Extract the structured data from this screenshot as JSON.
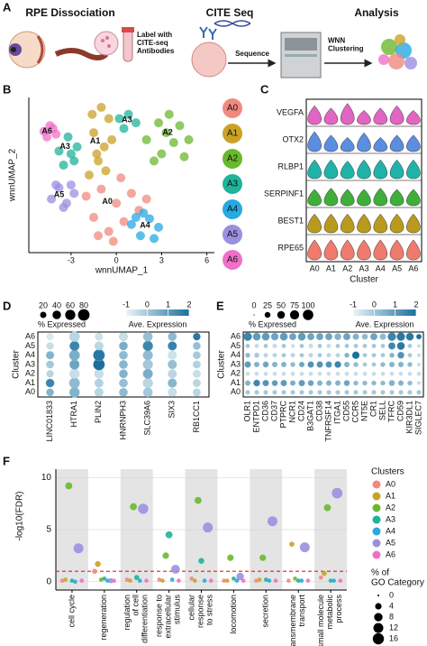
{
  "panel_labels": [
    "A",
    "B",
    "C",
    "D",
    "E",
    "F"
  ],
  "workflow": {
    "steps": [
      "RPE Dissociation",
      "CITE Seq",
      "Analysis"
    ],
    "notes": [
      "Label with\nCITE-seq\nAntibodies",
      "Sequence",
      "WNN\nClustering"
    ]
  },
  "chart_data": [
    {
      "type": "scatter",
      "xlabel": "wnnUMAP_1",
      "ylabel": "wnnUMAP_2",
      "xlim": [
        -5.8,
        6.5
      ],
      "ylim": [
        -5,
        6
      ],
      "xticks": [
        -3,
        0,
        3,
        6
      ],
      "series": [
        {
          "name": "A0",
          "color": "#f08a7e",
          "x": [
            -2,
            -1.5,
            -1,
            -0.5,
            0,
            0.5,
            1,
            1.5,
            -1.2,
            0.3,
            2,
            -0.2
          ],
          "y": [
            -1,
            -2.5,
            -0.5,
            -3.5,
            -1.5,
            -2.8,
            -0.8,
            -2,
            -3.8,
            0.3,
            -1.2,
            -4.2
          ]
        },
        {
          "name": "A1",
          "color": "#c9a227",
          "x": [
            -1.8,
            -1.2,
            -0.8,
            -1.5,
            -0.5,
            -1,
            -0.3,
            -1.6,
            -0.7,
            -1.3
          ],
          "y": [
            0.5,
            1.5,
            2.5,
            3.5,
            4.5,
            5.3,
            3,
            4.8,
            0.8,
            2
          ]
        },
        {
          "name": "A2",
          "color": "#6ab82e",
          "x": [
            2,
            2.8,
            3.5,
            4.2,
            4.8,
            3,
            3.8,
            4.5,
            2.5,
            3.3
          ],
          "y": [
            3,
            4.2,
            4.8,
            4,
            3,
            2,
            2.8,
            1.8,
            1.5,
            3.5
          ]
        },
        {
          "name": "A3",
          "color": "#1fb39a",
          "x": [
            -3.8,
            -3.2,
            -2.6,
            -3.5,
            -2.8,
            0.2,
            0.8,
            1.3,
            0.5,
            -3
          ],
          "y": [
            2.2,
            3.2,
            2.5,
            1.2,
            1.5,
            4.5,
            4.8,
            4.2,
            3.8,
            2
          ]
        },
        {
          "name": "A4",
          "color": "#27a9e1",
          "x": [
            1,
            1.6,
            2.2,
            2.8,
            1.8,
            1.3,
            2.5
          ],
          "y": [
            -3,
            -3.8,
            -2.6,
            -3.2,
            -2.2,
            -2.5,
            -4
          ]
        },
        {
          "name": "A5",
          "color": "#9b8fe0",
          "x": [
            -4.3,
            -3.8,
            -3.3,
            -2.8,
            -4,
            -3.5,
            -3
          ],
          "y": [
            -1.2,
            -0.4,
            -1.5,
            -0.8,
            -0.2,
            -1.8,
            -0.2
          ]
        },
        {
          "name": "A6",
          "color": "#f06fc8",
          "x": [
            -4.8,
            -4.4,
            -4,
            -4.6,
            -4.2
          ],
          "y": [
            3.6,
            4,
            3.4,
            3.2,
            3.8
          ]
        }
      ]
    },
    {
      "type": "violin",
      "categories": [
        "A0",
        "A1",
        "A2",
        "A3",
        "A4",
        "A5",
        "A6"
      ],
      "xlabel": "Cluster",
      "series": [
        {
          "name": "VEGFA",
          "color": "#e066c2",
          "values": [
            0.8,
            0.7,
            0.9,
            0.6,
            0.7,
            0.8,
            0.6
          ]
        },
        {
          "name": "OTX2",
          "color": "#5b8de0",
          "values": [
            0.85,
            0.7,
            0.6,
            0.8,
            0.6,
            0.7,
            0.7
          ]
        },
        {
          "name": "RLBP1",
          "color": "#1fb3a8",
          "values": [
            0.8,
            0.8,
            0.75,
            0.8,
            0.8,
            0.8,
            0.8
          ]
        },
        {
          "name": "SERPINF1",
          "color": "#3fae3a",
          "values": [
            0.7,
            0.75,
            0.7,
            0.7,
            0.75,
            0.7,
            0.7
          ]
        },
        {
          "name": "BEST1",
          "color": "#b89a1e",
          "values": [
            0.8,
            0.8,
            0.8,
            0.8,
            0.8,
            0.8,
            0.8
          ]
        },
        {
          "name": "RPE65",
          "color": "#f07a6e",
          "values": [
            0.85,
            0.85,
            0.85,
            0.85,
            0.85,
            0.85,
            0.85
          ]
        }
      ]
    },
    {
      "type": "dotplot",
      "categories": [
        "LINC01833",
        "HTRA1",
        "PLIN2",
        "HNRNPH3",
        "SLC39A6",
        "SIX3",
        "RB1CC1"
      ],
      "ylabel": "Cluster",
      "size_label": "% Expressed",
      "size_ticks": [
        20,
        40,
        60,
        80
      ],
      "color_label": "Ave. Expression",
      "color_lim": [
        -1,
        2
      ],
      "color_ticks": [
        -1,
        0,
        1,
        2
      ],
      "colors": [
        "#eaf4f8",
        "#1b6f9e"
      ],
      "series": [
        {
          "name": "A0",
          "values": [
            0.5,
            0.5,
            -0.3,
            0.3,
            0,
            -0.5,
            -0.3
          ],
          "sizes": [
            30,
            60,
            40,
            40,
            50,
            40,
            30
          ]
        },
        {
          "name": "A1",
          "values": [
            1.5,
            0.3,
            -0.2,
            0.2,
            -0.3,
            0.4,
            -0.3
          ],
          "sizes": [
            40,
            65,
            40,
            40,
            55,
            45,
            30
          ]
        },
        {
          "name": "A2",
          "values": [
            -0.3,
            -0.5,
            -0.5,
            0.5,
            0.6,
            -0.3,
            -0.5
          ],
          "sizes": [
            25,
            55,
            45,
            40,
            55,
            40,
            30
          ]
        },
        {
          "name": "A3",
          "values": [
            0,
            0.8,
            2,
            0.4,
            0,
            0.2,
            -0.2
          ],
          "sizes": [
            30,
            55,
            80,
            40,
            55,
            45,
            30
          ]
        },
        {
          "name": "A4",
          "values": [
            0.5,
            0.6,
            1.8,
            0.3,
            0.3,
            -0.6,
            0
          ],
          "sizes": [
            35,
            65,
            80,
            40,
            55,
            40,
            30
          ]
        },
        {
          "name": "A5",
          "values": [
            -0.5,
            1.5,
            -0.3,
            0.6,
            1.5,
            1.6,
            0.2
          ],
          "sizes": [
            25,
            55,
            40,
            40,
            60,
            45,
            30
          ]
        },
        {
          "name": "A6",
          "values": [
            -0.8,
            -0.3,
            -0.6,
            -0.5,
            0.2,
            0.3,
            1.8
          ],
          "sizes": [
            20,
            60,
            30,
            40,
            50,
            40,
            30
          ]
        }
      ]
    },
    {
      "type": "dotplot",
      "categories": [
        "OLR1",
        "ENTPD1",
        "CD36",
        "CD37",
        "PTPRC",
        "NCR1",
        "CD24",
        "B3GAT1",
        "CD38",
        "TNFRSF14",
        "ITGA1",
        "CD55",
        "CCR5",
        "NT5E",
        "CR1",
        "SELL",
        "TFRC",
        "CD59",
        "KIR3DL1",
        "SIGLEC7"
      ],
      "ylabel": "Cluster",
      "size_label": "% Expressed",
      "size_ticks": [
        0,
        25,
        50,
        75,
        100
      ],
      "color_label": "Ave. Expression",
      "color_lim": [
        -1,
        2
      ],
      "color_ticks": [
        -1,
        0,
        1,
        2
      ],
      "colors": [
        "#eaf4f8",
        "#1b6f9e"
      ],
      "series": [
        {
          "name": "A0",
          "values": [
            0,
            0,
            0,
            0,
            0,
            0,
            0,
            0,
            0,
            0,
            0,
            0,
            0,
            0,
            0,
            0,
            0,
            0,
            0,
            0
          ],
          "sizes": [
            12,
            12,
            12,
            12,
            12,
            12,
            12,
            12,
            12,
            12,
            12,
            12,
            12,
            12,
            12,
            12,
            12,
            12,
            12,
            12
          ]
        },
        {
          "name": "A1",
          "values": [
            0.5,
            1.5,
            1.2,
            1,
            1,
            0.6,
            1,
            0.8,
            0.5,
            0.5,
            0.5,
            0.8,
            0.3,
            0.3,
            0.3,
            0.3,
            0.5,
            0.5,
            0.3,
            -0.5
          ],
          "sizes": [
            20,
            35,
            30,
            25,
            30,
            20,
            30,
            25,
            20,
            20,
            20,
            25,
            15,
            15,
            15,
            15,
            25,
            20,
            15,
            5
          ]
        },
        {
          "name": "A2",
          "values": [
            -0.5,
            -0.5,
            -0.5,
            -0.5,
            -0.5,
            -0.5,
            -0.5,
            -0.5,
            -0.5,
            -0.5,
            -0.5,
            -0.5,
            -0.5,
            -0.5,
            -0.5,
            -0.5,
            -0.5,
            -0.5,
            -0.5,
            -0.5
          ],
          "sizes": [
            8,
            8,
            8,
            8,
            8,
            8,
            8,
            8,
            8,
            8,
            8,
            8,
            8,
            8,
            8,
            8,
            8,
            8,
            8,
            8
          ]
        },
        {
          "name": "A3",
          "values": [
            1,
            0.5,
            0.8,
            0.5,
            0.5,
            0.3,
            0.8,
            1.2,
            1.2,
            1.2,
            1.5,
            0.5,
            0.3,
            0,
            0,
            0.3,
            0.5,
            0.5,
            0.3,
            -0.5
          ],
          "sizes": [
            30,
            20,
            25,
            20,
            20,
            15,
            20,
            30,
            30,
            30,
            35,
            20,
            15,
            10,
            10,
            15,
            20,
            20,
            15,
            5
          ]
        },
        {
          "name": "A4",
          "values": [
            0.3,
            0,
            -0.3,
            -0.3,
            0,
            -0.3,
            0,
            -0.3,
            0,
            -0.3,
            -0.3,
            0.5,
            2,
            0,
            0,
            0,
            0.5,
            1.2,
            0,
            -0.5
          ],
          "sizes": [
            15,
            15,
            10,
            10,
            10,
            10,
            10,
            10,
            10,
            10,
            10,
            15,
            45,
            10,
            10,
            10,
            15,
            35,
            10,
            5
          ]
        },
        {
          "name": "A5",
          "values": [
            0,
            -0.5,
            0,
            -0.5,
            0,
            -0.5,
            0,
            -0.5,
            0,
            -0.5,
            0,
            0,
            0,
            0,
            0,
            0,
            1.5,
            1.8,
            0,
            -0.5
          ],
          "sizes": [
            10,
            10,
            10,
            10,
            10,
            5,
            10,
            10,
            10,
            10,
            10,
            10,
            10,
            10,
            10,
            10,
            40,
            50,
            10,
            5
          ]
        },
        {
          "name": "A6",
          "values": [
            1.5,
            1,
            1,
            0.8,
            1,
            0.8,
            1,
            0.8,
            0.8,
            0.8,
            0.5,
            0.8,
            0.5,
            0.3,
            0.8,
            0.3,
            1.5,
            1.8,
            1.8,
            2
          ],
          "sizes": [
            60,
            50,
            50,
            45,
            50,
            40,
            50,
            40,
            40,
            40,
            35,
            40,
            30,
            25,
            40,
            30,
            60,
            60,
            50,
            20
          ]
        }
      ]
    },
    {
      "type": "category-scatter",
      "ylabel": "-log10(FDR)",
      "categories": [
        "cell cycle",
        "regeneration",
        "regulation\nof cell\ndifferentiation",
        "response to\nextracellular\nstimulus",
        "cellular\nresponse\nto stress",
        "locomotion",
        "secretion",
        "transmembrane\ntransport",
        "small molecule\nmetabolic\nprocess"
      ],
      "shaded": [
        true,
        false,
        true,
        false,
        true,
        false,
        true,
        false,
        true
      ],
      "ylim": [
        -0.8,
        10.8
      ],
      "yticks": [
        0,
        5,
        10
      ],
      "grid": true,
      "threshold": 1,
      "legend_title": "Clusters",
      "size_title": "% of\nGO Category",
      "size_ticks": [
        0,
        4,
        8,
        12,
        16
      ],
      "series": [
        {
          "name": "A0",
          "color": "#f08a7e",
          "values": [
            0.1,
            1.0,
            0.2,
            0.2,
            0.3,
            0.1,
            0.1,
            0.1,
            0.4
          ],
          "sizes": [
            1,
            2,
            1,
            1,
            1,
            1,
            1,
            1,
            1
          ]
        },
        {
          "name": "A1",
          "color": "#c9a227",
          "values": [
            0.2,
            1.7,
            0.1,
            0.1,
            0.1,
            0.1,
            0.2,
            3.6,
            0.8
          ],
          "sizes": [
            1,
            3,
            1,
            1,
            1,
            1,
            1,
            2,
            2
          ]
        },
        {
          "name": "A2",
          "color": "#6ab82e",
          "values": [
            9.2,
            0.2,
            7.2,
            2.5,
            7.8,
            2.3,
            2.3,
            0.3,
            7.1
          ],
          "sizes": [
            5,
            1,
            5,
            4,
            5,
            4,
            4,
            1,
            5
          ]
        },
        {
          "name": "A3",
          "color": "#1fb39a",
          "values": [
            0.1,
            0.3,
            0.4,
            4.5,
            2.0,
            0.3,
            0.2,
            0.1,
            0.1
          ],
          "sizes": [
            1,
            1,
            2,
            5,
            3,
            1,
            1,
            1,
            1
          ]
        },
        {
          "name": "A4",
          "color": "#27a9e1",
          "values": [
            0,
            0.1,
            0.1,
            0.2,
            0.1,
            0.1,
            0.1,
            0.1,
            0.1
          ],
          "sizes": [
            1,
            1,
            1,
            1,
            1,
            1,
            1,
            1,
            1
          ]
        },
        {
          "name": "A5",
          "color": "#9b8fe0",
          "values": [
            3.2,
            0.1,
            7.0,
            1.2,
            5.2,
            0.5,
            5.8,
            3.3,
            8.5
          ],
          "sizes": [
            12,
            2,
            13,
            9,
            12,
            6,
            12,
            12,
            14
          ]
        },
        {
          "name": "A6",
          "color": "#f06fc8",
          "values": [
            0.1,
            0.1,
            0.1,
            0.1,
            0.1,
            0.1,
            0.1,
            0.1,
            0.1
          ],
          "sizes": [
            1,
            1,
            1,
            1,
            1,
            1,
            1,
            1,
            1
          ]
        }
      ]
    }
  ]
}
